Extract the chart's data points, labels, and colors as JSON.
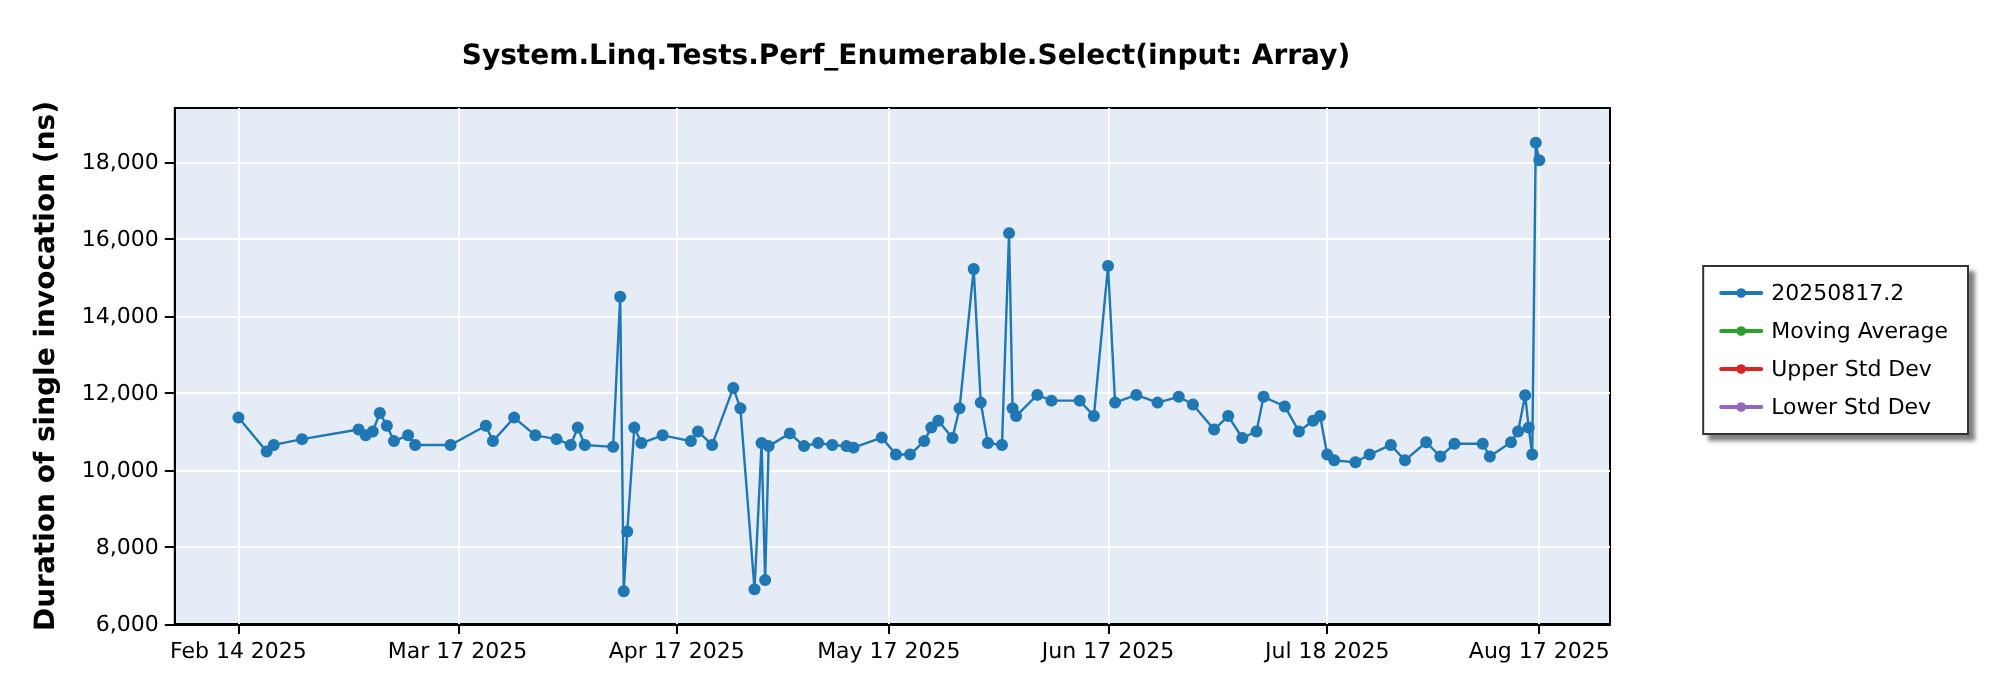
{
  "chart_data": {
    "type": "line",
    "title": "System.Linq.Tests.Perf_Enumerable.Select(input: Array)",
    "ylabel": "Duration of single invocation (ns)",
    "xlim": [
      "2025-02-05",
      "2025-08-27"
    ],
    "xticks": [
      {
        "value": "2025-02-14",
        "label": "Feb 14 2025"
      },
      {
        "value": "2025-03-17",
        "label": "Mar 17 2025"
      },
      {
        "value": "2025-04-17",
        "label": "Apr 17 2025"
      },
      {
        "value": "2025-05-17",
        "label": "May 17 2025"
      },
      {
        "value": "2025-06-17",
        "label": "Jun 17 2025"
      },
      {
        "value": "2025-07-18",
        "label": "Jul 18 2025"
      },
      {
        "value": "2025-08-17",
        "label": "Aug 17 2025"
      }
    ],
    "ylim": [
      6000,
      19400
    ],
    "yticks": [
      {
        "value": 6000,
        "label": "6,000"
      },
      {
        "value": 8000,
        "label": "8,000"
      },
      {
        "value": 10000,
        "label": "10,000"
      },
      {
        "value": 12000,
        "label": "12,000"
      },
      {
        "value": 14000,
        "label": "14,000"
      },
      {
        "value": 16000,
        "label": "16,000"
      },
      {
        "value": 18000,
        "label": "18,000"
      }
    ],
    "grid": true,
    "legend": "right",
    "marker": "circle",
    "line_style": "solid",
    "series": [
      {
        "name": "20250817.2",
        "color": "#1f77b4",
        "x": [
          "2025-02-14",
          "2025-02-18",
          "2025-02-19",
          "2025-02-23",
          "2025-03-03",
          "2025-03-04",
          "2025-03-05",
          "2025-03-06",
          "2025-03-07",
          "2025-03-08",
          "2025-03-10",
          "2025-03-11",
          "2025-03-16",
          "2025-03-21",
          "2025-03-22",
          "2025-03-25",
          "2025-03-28",
          "2025-03-31",
          "2025-04-02",
          "2025-04-03",
          "2025-04-04",
          "2025-04-08",
          "2025-04-09",
          "2025-04-09T12:00",
          "2025-04-10",
          "2025-04-11",
          "2025-04-12",
          "2025-04-15",
          "2025-04-19",
          "2025-04-20",
          "2025-04-22",
          "2025-04-25",
          "2025-04-26",
          "2025-04-28",
          "2025-04-29",
          "2025-04-29T12:00",
          "2025-04-30",
          "2025-05-03",
          "2025-05-05",
          "2025-05-07",
          "2025-05-09",
          "2025-05-11",
          "2025-05-12",
          "2025-05-16",
          "2025-05-18",
          "2025-05-20",
          "2025-05-22",
          "2025-05-23",
          "2025-05-24",
          "2025-05-26",
          "2025-05-27",
          "2025-05-29",
          "2025-05-30",
          "2025-05-31",
          "2025-06-02",
          "2025-06-03",
          "2025-06-03T12:00",
          "2025-06-04",
          "2025-06-07",
          "2025-06-09",
          "2025-06-13",
          "2025-06-15",
          "2025-06-17",
          "2025-06-18",
          "2025-06-21",
          "2025-06-24",
          "2025-06-27",
          "2025-06-29",
          "2025-07-02",
          "2025-07-04",
          "2025-07-06",
          "2025-07-08",
          "2025-07-09",
          "2025-07-12",
          "2025-07-14",
          "2025-07-16",
          "2025-07-17",
          "2025-07-18",
          "2025-07-19",
          "2025-07-22",
          "2025-07-24",
          "2025-07-27",
          "2025-07-29",
          "2025-08-01",
          "2025-08-03",
          "2025-08-05",
          "2025-08-09",
          "2025-08-10",
          "2025-08-13",
          "2025-08-14",
          "2025-08-15",
          "2025-08-15T12:00",
          "2025-08-16",
          "2025-08-16T12:00",
          "2025-08-17"
        ],
        "values": [
          11360,
          10480,
          10650,
          10800,
          11050,
          10900,
          11000,
          11480,
          11150,
          10750,
          10900,
          10650,
          10650,
          11150,
          10750,
          11360,
          10900,
          10800,
          10650,
          11100,
          10650,
          10600,
          14500,
          6850,
          8400,
          11100,
          10700,
          10900,
          10750,
          11000,
          10650,
          12130,
          11600,
          6900,
          10700,
          7140,
          10620,
          10950,
          10620,
          10700,
          10650,
          10620,
          10580,
          10840,
          10400,
          10400,
          10750,
          11100,
          11280,
          10830,
          11600,
          15220,
          11750,
          10700,
          10650,
          16150,
          11600,
          11400,
          11950,
          11800,
          11800,
          11400,
          15300,
          11750,
          11950,
          11750,
          11900,
          11700,
          11050,
          11400,
          10830,
          11000,
          11900,
          11650,
          11000,
          11280,
          11400,
          10400,
          10250,
          10200,
          10400,
          10650,
          10250,
          10720,
          10350,
          10680,
          10680,
          10350,
          10720,
          11000,
          11940,
          11100,
          10400,
          18500,
          18040
        ]
      },
      {
        "name": "Moving Average",
        "color": "#2ca02c"
      },
      {
        "name": "Upper Std Dev",
        "color": "#d62728"
      },
      {
        "name": "Lower Std Dev",
        "color": "#9467bd"
      }
    ]
  }
}
